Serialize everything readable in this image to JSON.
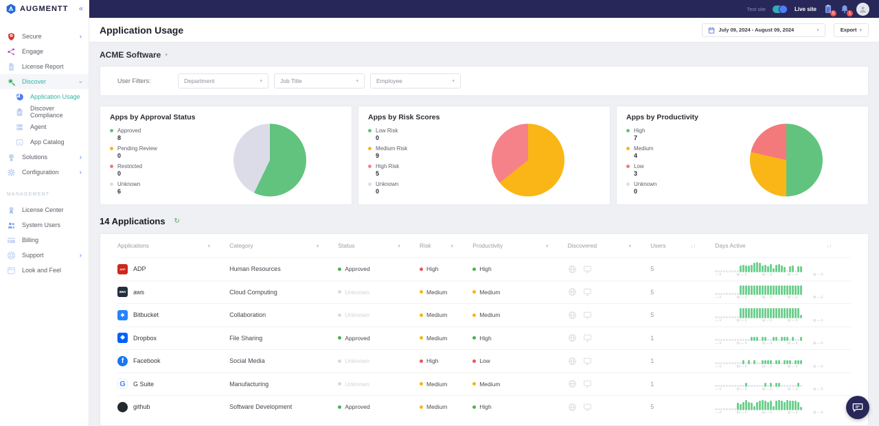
{
  "brand": {
    "logo_text": "AUGMENTT",
    "collapse_glyph": "«"
  },
  "topbar": {
    "test_site_label": "Test site",
    "live_site_label": "Live site",
    "tasks_badge": "5",
    "alerts_badge": "1"
  },
  "page": {
    "title": "Application Usage",
    "company": "ACME Software",
    "date_range": "July 09, 2024 - August 09, 2024",
    "export_label": "Export"
  },
  "filters": {
    "label": "User Filters:",
    "department_placeholder": "Department",
    "job_title_placeholder": "Job Title",
    "employee_placeholder": "Employee"
  },
  "sidebar": {
    "items": [
      {
        "label": "Secure",
        "icon": "shield-icon",
        "chevron": "right"
      },
      {
        "label": "Engage",
        "icon": "network-icon"
      },
      {
        "label": "License Report",
        "icon": "report-icon"
      },
      {
        "label": "Discover",
        "icon": "search-icon",
        "chevron": "down",
        "teal": true,
        "shaded": true
      },
      {
        "label": "Application Usage",
        "icon": "pie-icon",
        "indent": true,
        "teal": true
      },
      {
        "label": "Discover Compliance",
        "icon": "compliance-icon",
        "indent": true
      },
      {
        "label": "Agent",
        "icon": "agent-icon",
        "indent": true
      },
      {
        "label": "App Catalog",
        "icon": "catalog-icon",
        "indent": true
      },
      {
        "label": "Solutions",
        "icon": "bulb-icon",
        "chevron": "right"
      },
      {
        "label": "Configuration",
        "icon": "gear-icon",
        "chevron": "right"
      }
    ],
    "management_label": "MANAGEMENT",
    "management_items": [
      {
        "label": "License Center",
        "icon": "license-icon"
      },
      {
        "label": "System Users",
        "icon": "users-icon"
      },
      {
        "label": "Billing",
        "icon": "billing-icon"
      },
      {
        "label": "Support",
        "icon": "support-icon",
        "chevron": "right"
      },
      {
        "label": "Look and Feel",
        "icon": "look-icon"
      }
    ]
  },
  "chart_data": [
    {
      "type": "pie",
      "title": "Apps by Approval Status",
      "labels": [
        "Approved",
        "Pending Review",
        "Restricted",
        "Unknown"
      ],
      "values": [
        8,
        0,
        0,
        6
      ],
      "colors": [
        "#62c37e",
        "#f9b616",
        "#f4797b",
        "#dcdce8"
      ],
      "legend_position": "left"
    },
    {
      "type": "pie",
      "title": "Apps by Risk Scores",
      "labels": [
        "Low Risk",
        "Medium Risk",
        "High Risk",
        "Unknown"
      ],
      "values": [
        0,
        9,
        5,
        0
      ],
      "colors": [
        "#62c37e",
        "#f9b616",
        "#f58289",
        "#dcdce8"
      ],
      "legend_position": "left"
    },
    {
      "type": "pie",
      "title": "Apps by Productivity",
      "labels": [
        "High",
        "Medium",
        "Low",
        "Unknown"
      ],
      "values": [
        7,
        4,
        3,
        0
      ],
      "colors": [
        "#62c37e",
        "#f9b616",
        "#f4797b",
        "#dcdce8"
      ],
      "legend_position": "left"
    }
  ],
  "table": {
    "title": "14 Applications",
    "refresh_glyph": "↻",
    "headers": [
      {
        "label": "Applications",
        "sort": "▾"
      },
      {
        "label": "Category",
        "sort": "▾"
      },
      {
        "label": "Status",
        "sort": "▾"
      },
      {
        "label": "Risk",
        "sort": "▾"
      },
      {
        "label": "Productivity",
        "sort": "▾"
      },
      {
        "label": "Discovered",
        "sort": "▾"
      },
      {
        "label": "Users",
        "sort": "↓↑"
      },
      {
        "label": "Days Active",
        "sort": "↓↑"
      }
    ],
    "days_axis": [
      "— F",
      "M — F",
      "M — F",
      "M — F",
      "M — F"
    ],
    "rows": [
      {
        "app": "ADP",
        "logo": {
          "bg": "#d0271d",
          "fg": "#ffffff",
          "text": "ADP",
          "font": 4,
          "shape": "square"
        },
        "category": "Human Resources",
        "status": {
          "label": "Approved",
          "tone": "green"
        },
        "risk": {
          "label": "High",
          "tone": "red"
        },
        "productivity": {
          "label": "High",
          "tone": "green"
        },
        "users": "5",
        "bars": [
          0,
          0,
          0,
          0,
          0,
          0,
          0,
          0,
          0,
          6,
          7,
          6,
          6,
          7,
          9,
          10,
          9,
          6,
          7,
          5,
          8,
          3,
          7,
          8,
          6,
          4,
          0,
          5,
          6,
          0,
          5,
          5
        ]
      },
      {
        "app": "aws",
        "logo": {
          "bg": "#232f3e",
          "fg": "#ffffff",
          "text": "aws",
          "font": 5,
          "shape": "square"
        },
        "category": "Cloud Computing",
        "status": {
          "label": "Unknown",
          "tone": "gray"
        },
        "risk": {
          "label": "Medium",
          "tone": "yellow"
        },
        "productivity": {
          "label": "Medium",
          "tone": "yellow"
        },
        "users": "5",
        "bars": [
          0,
          0,
          0,
          0,
          0,
          0,
          0,
          0,
          0,
          10,
          10,
          10,
          10,
          10,
          10,
          10,
          10,
          10,
          10,
          10,
          10,
          10,
          10,
          10,
          10,
          10,
          10,
          10,
          10,
          10,
          10,
          10
        ]
      },
      {
        "app": "Bitbucket",
        "logo": {
          "bg": "#2684ff",
          "fg": "#ffffff",
          "text": "◆",
          "font": 7,
          "shape": "square"
        },
        "category": "Collaboration",
        "status": {
          "label": "Unknown",
          "tone": "gray"
        },
        "risk": {
          "label": "Medium",
          "tone": "yellow"
        },
        "productivity": {
          "label": "Medium",
          "tone": "yellow"
        },
        "users": "5",
        "bars": [
          0,
          0,
          0,
          0,
          0,
          0,
          0,
          0,
          0,
          10,
          10,
          10,
          10,
          10,
          10,
          10,
          10,
          10,
          10,
          10,
          10,
          10,
          10,
          10,
          10,
          10,
          10,
          10,
          10,
          10,
          10,
          2
        ]
      },
      {
        "app": "Dropbox",
        "logo": {
          "bg": "#0061ff",
          "fg": "#ffffff",
          "text": "❖",
          "font": 9,
          "shape": "square"
        },
        "category": "File Sharing",
        "status": {
          "label": "Approved",
          "tone": "green"
        },
        "risk": {
          "label": "Medium",
          "tone": "yellow"
        },
        "productivity": {
          "label": "High",
          "tone": "green"
        },
        "users": "1",
        "bars": [
          0,
          0,
          0,
          0,
          0,
          0,
          0,
          0,
          0,
          0,
          0,
          0,
          0,
          3,
          3,
          3,
          0,
          3,
          3,
          0,
          0,
          3,
          3,
          0,
          3,
          3,
          3,
          0,
          3,
          0,
          0,
          3
        ]
      },
      {
        "app": "Facebook",
        "logo": {
          "bg": "#1877f2",
          "fg": "#ffffff",
          "text": "f",
          "font": 10,
          "shape": "circle"
        },
        "category": "Social Media",
        "status": {
          "label": "Unknown",
          "tone": "gray"
        },
        "risk": {
          "label": "High",
          "tone": "red"
        },
        "productivity": {
          "label": "Low",
          "tone": "red"
        },
        "users": "1",
        "bars": [
          0,
          0,
          0,
          0,
          0,
          0,
          0,
          0,
          0,
          0,
          3,
          0,
          3,
          0,
          3,
          0,
          0,
          3,
          3,
          3,
          3,
          0,
          3,
          3,
          0,
          3,
          3,
          3,
          0,
          3,
          3,
          3
        ]
      },
      {
        "app": "G Suite",
        "logo": {
          "bg": "#ffffff",
          "fg": "#4285f4",
          "text": "G",
          "font": 11,
          "shape": "square"
        },
        "category": "Manufacturing",
        "status": {
          "label": "Unknown",
          "tone": "gray"
        },
        "risk": {
          "label": "Medium",
          "tone": "yellow"
        },
        "productivity": {
          "label": "Medium",
          "tone": "yellow"
        },
        "users": "1",
        "bars": [
          0,
          0,
          0,
          0,
          0,
          0,
          0,
          0,
          0,
          0,
          0,
          3,
          0,
          0,
          0,
          0,
          0,
          0,
          3,
          0,
          3,
          0,
          3,
          3,
          0,
          0,
          0,
          0,
          0,
          0,
          3,
          0
        ]
      },
      {
        "app": "github",
        "logo": {
          "bg": "#24292e",
          "fg": "#ffffff",
          "text": "",
          "font": 8,
          "shape": "circle"
        },
        "category": "Software Development",
        "status": {
          "label": "Approved",
          "tone": "green"
        },
        "risk": {
          "label": "Medium",
          "tone": "yellow"
        },
        "productivity": {
          "label": "High",
          "tone": "green"
        },
        "users": "5",
        "bars": [
          0,
          0,
          0,
          0,
          0,
          0,
          0,
          0,
          7,
          5,
          8,
          10,
          8,
          7,
          3,
          8,
          9,
          10,
          9,
          8,
          9,
          3,
          9,
          10,
          9,
          8,
          10,
          9,
          9,
          9,
          8,
          2
        ]
      }
    ]
  }
}
